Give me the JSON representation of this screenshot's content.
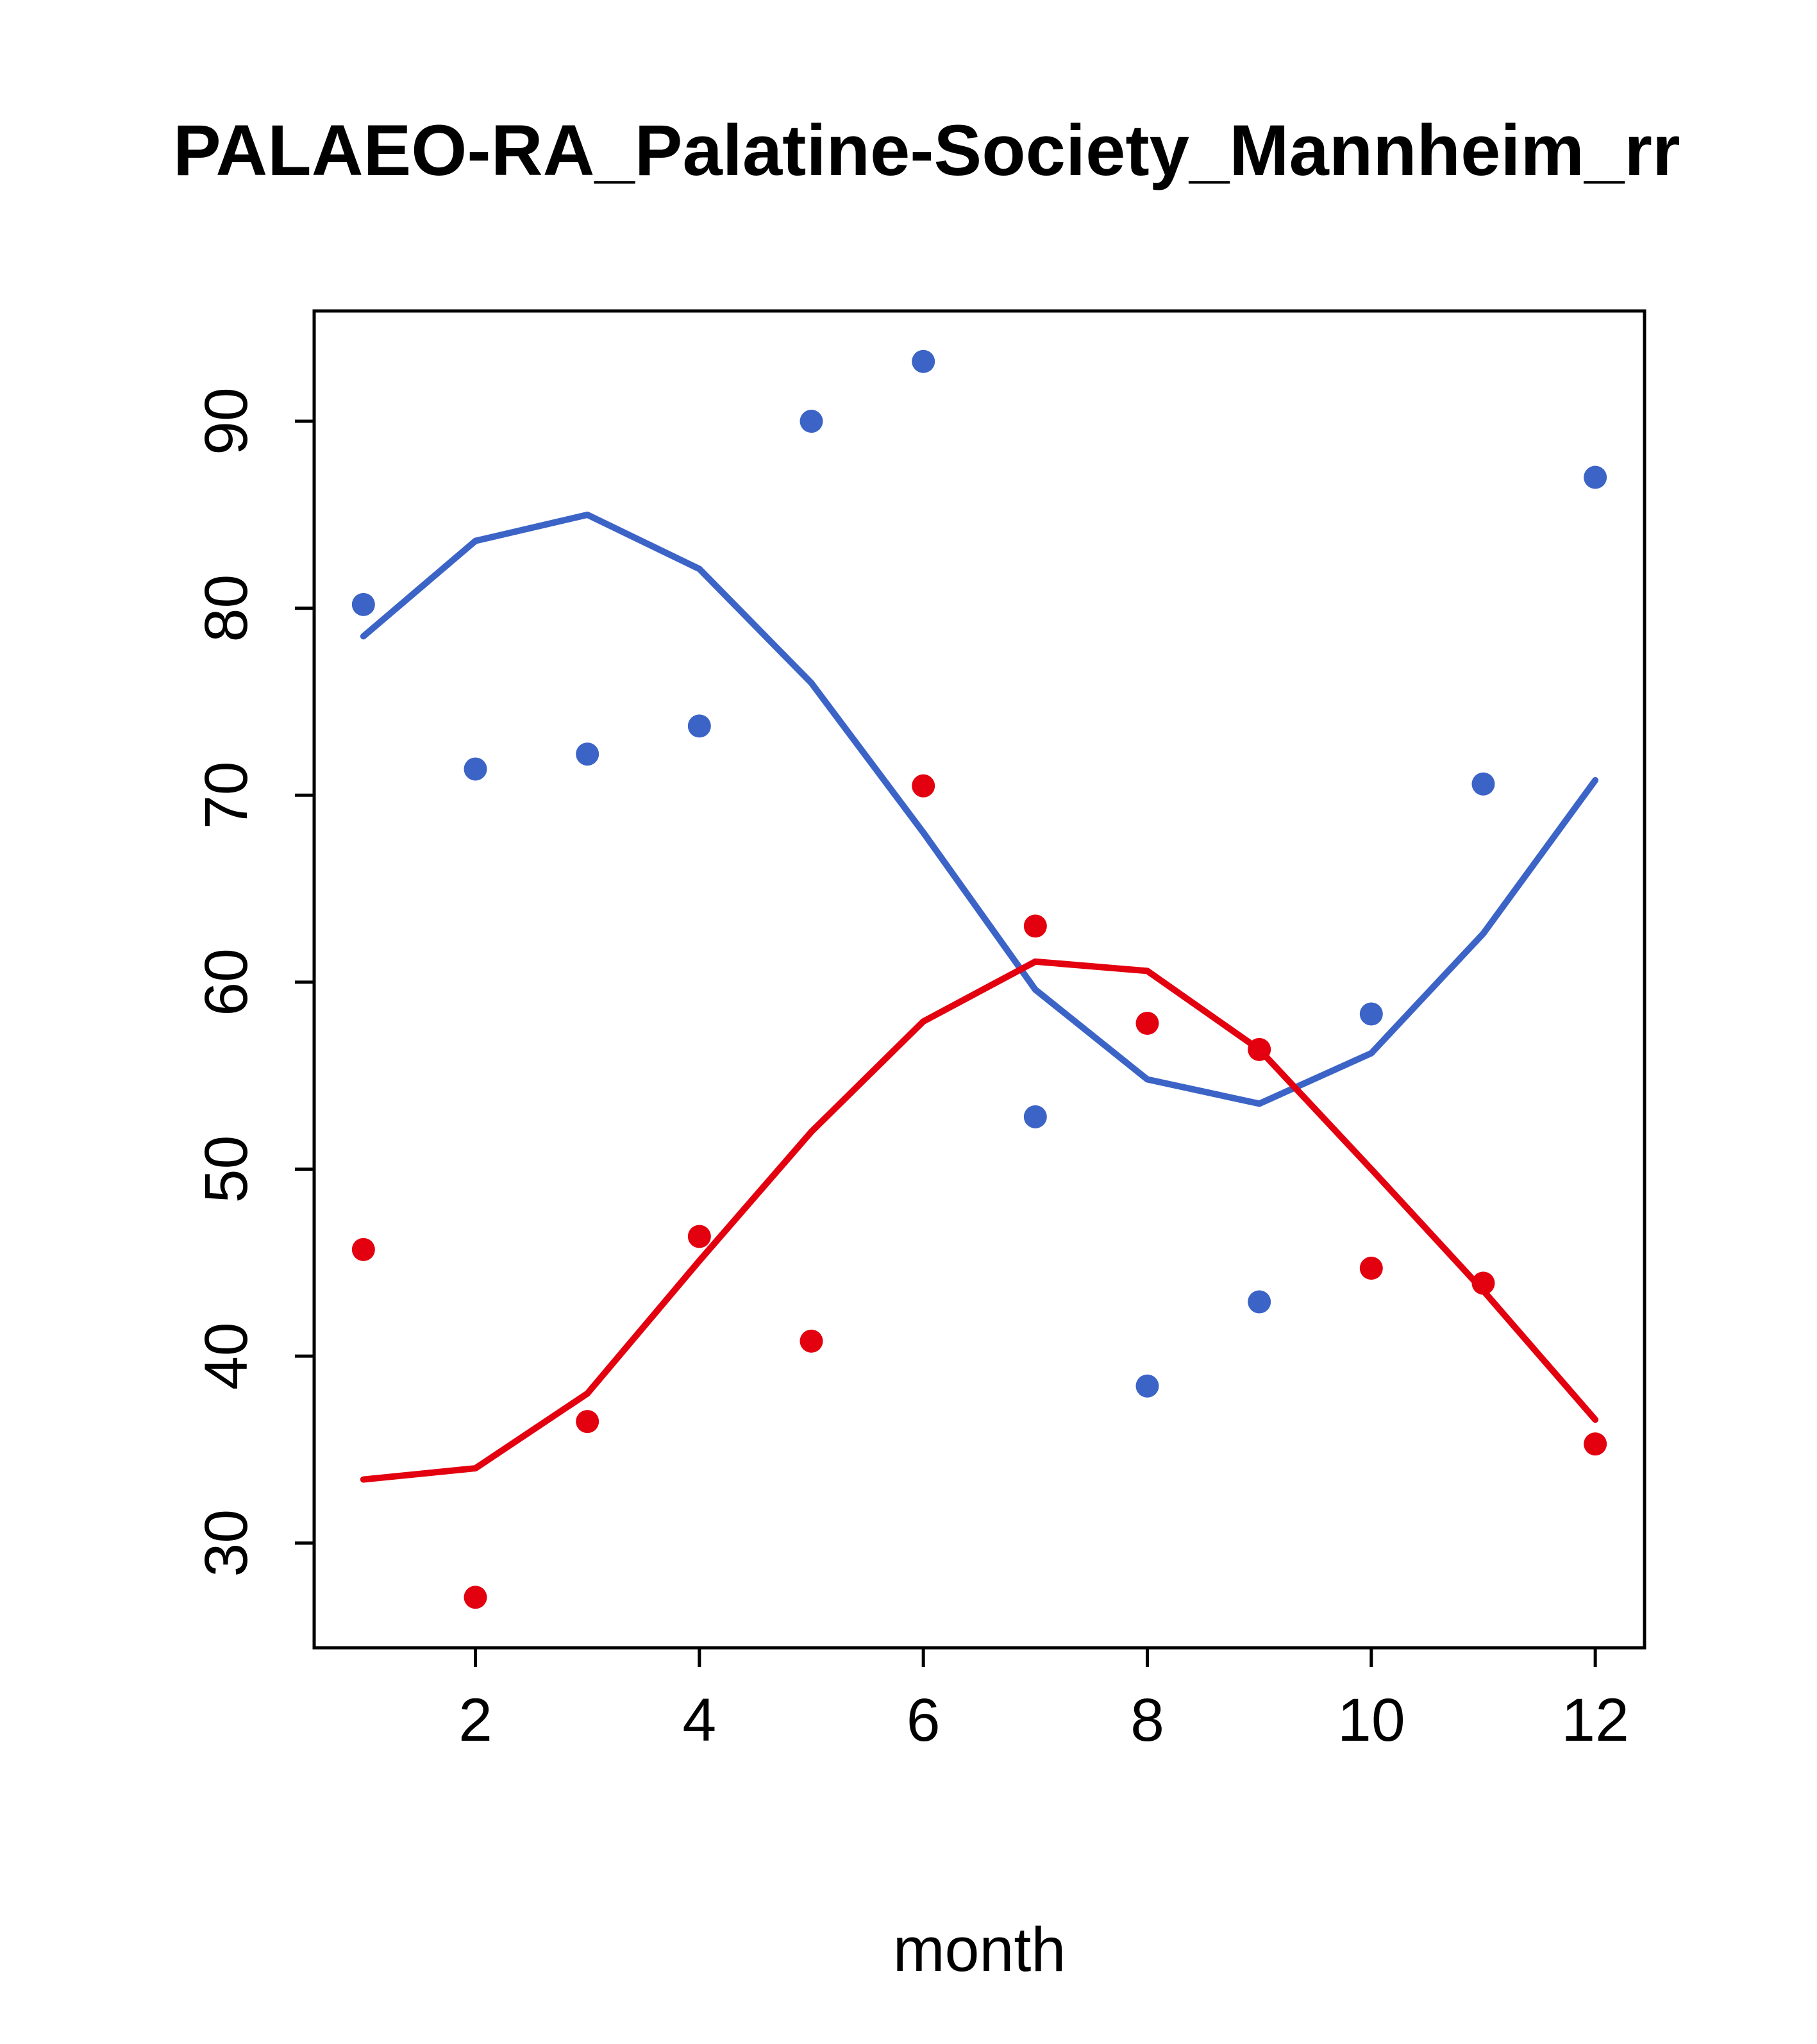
{
  "title": "PALAEO-RA_Palatine-Society_Mannheim_rr",
  "xlabel": "month",
  "colors": {
    "blue": "#3C64C7",
    "red": "#E3000F",
    "axis": "#000000",
    "background": "#FFFFFF"
  },
  "chart_data": {
    "type": "scatter",
    "title": "PALAEO-RA_Palatine-Society_Mannheim_rr",
    "xlabel": "month",
    "ylabel": "",
    "grid": false,
    "legend": "none",
    "x": [
      1,
      2,
      3,
      4,
      5,
      6,
      7,
      8,
      9,
      10,
      11,
      12
    ],
    "xlim": [
      0.56,
      12.44
    ],
    "ylim": [
      24.4,
      95.9
    ],
    "xticks": [
      2,
      4,
      6,
      8,
      10,
      12
    ],
    "yticks": [
      30,
      40,
      50,
      60,
      70,
      80,
      90
    ],
    "series": [
      {
        "name": "blue-line",
        "kind": "line",
        "color": "#3C64C7",
        "values": [
          78.5,
          83.6,
          85.0,
          82.1,
          76.0,
          68.0,
          59.6,
          54.8,
          53.5,
          56.2,
          62.6,
          70.8
        ]
      },
      {
        "name": "red-line",
        "kind": "line",
        "color": "#E3000F",
        "values": [
          33.4,
          34.0,
          38.0,
          45.1,
          52.0,
          57.9,
          61.1,
          60.6,
          56.4,
          50.0,
          43.5,
          36.6
        ]
      },
      {
        "name": "blue-points",
        "kind": "points",
        "color": "#3C64C7",
        "values": [
          80.2,
          71.4,
          72.2,
          73.7,
          90.0,
          93.2,
          52.8,
          38.4,
          42.9,
          58.3,
          70.6,
          87.0
        ]
      },
      {
        "name": "red-points",
        "kind": "points",
        "color": "#E3000F",
        "values": [
          45.7,
          27.1,
          36.5,
          46.4,
          40.8,
          70.5,
          63.0,
          57.8,
          56.4,
          44.7,
          43.9,
          35.3
        ]
      }
    ]
  }
}
